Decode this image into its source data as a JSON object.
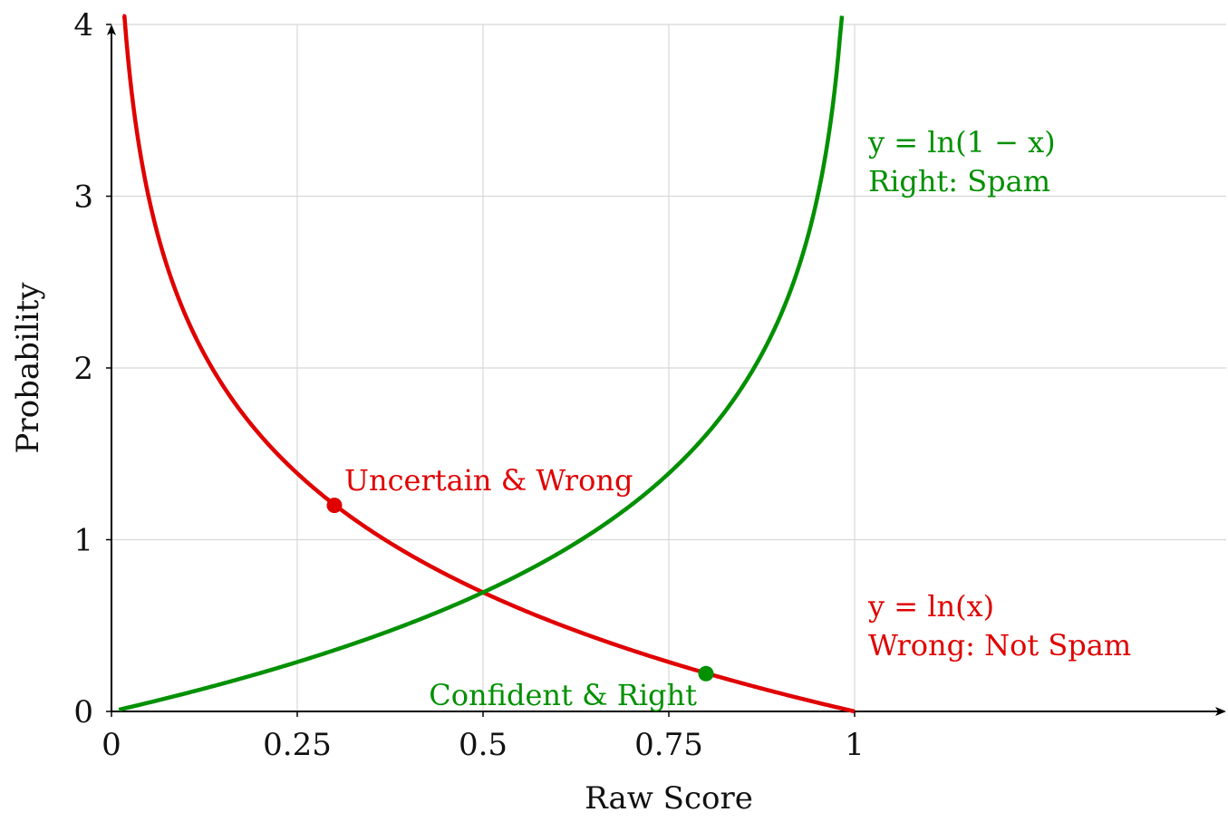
{
  "chart_data": {
    "type": "line",
    "xlabel": "Raw Score",
    "ylabel": "Probability",
    "xlim": [
      0,
      1.5
    ],
    "ylim": [
      0,
      4
    ],
    "x_ticks": [
      {
        "value": 0,
        "label": "0"
      },
      {
        "value": 0.25,
        "label": "0.25"
      },
      {
        "value": 0.5,
        "label": "0.5"
      },
      {
        "value": 0.75,
        "label": "0.75"
      },
      {
        "value": 1,
        "label": "1"
      }
    ],
    "y_ticks": [
      {
        "value": 0,
        "label": "0"
      },
      {
        "value": 1,
        "label": "1"
      },
      {
        "value": 2,
        "label": "2"
      },
      {
        "value": 3,
        "label": "3"
      },
      {
        "value": 4,
        "label": "4"
      }
    ],
    "grid": true,
    "series": [
      {
        "name": "y = ln(x)",
        "color": "#e00000",
        "function": "-ln(x)",
        "x_range": [
          0.015,
          1
        ]
      },
      {
        "name": "y = ln(1 − x)",
        "color": "#009000",
        "function": "-ln(1-x)",
        "x_range": [
          0.01,
          0.983
        ]
      }
    ],
    "points": [
      {
        "x": 0.3,
        "y": 1.2,
        "color": "#e00000",
        "label": "Uncertain & Wrong"
      },
      {
        "x": 0.8,
        "y": 0.22,
        "color": "#009000",
        "label": "Confident & Right"
      }
    ],
    "annotations": {
      "green_formula": "y = ln(1 − x)",
      "green_caption": "Right: Spam",
      "red_formula": "y = ln(x)",
      "red_caption": "Wrong: Not Spam"
    }
  }
}
